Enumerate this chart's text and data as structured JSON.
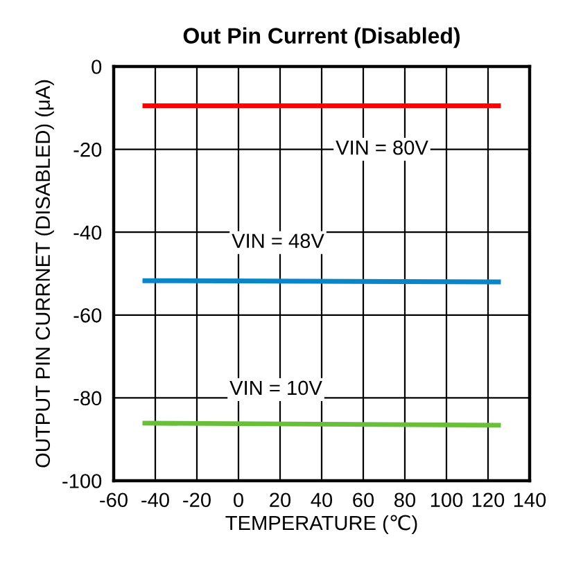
{
  "chart_data": {
    "type": "line",
    "title": "Out Pin Current (Disabled)",
    "xlabel": "TEMPERATURE (℃)",
    "ylabel": "OUTPUT PIN CURRNET (DISABLED) (μA)",
    "series": [
      {
        "name": "VIN = 80V",
        "color": "#ff0000",
        "values": [
          -9.5,
          -9.5
        ]
      },
      {
        "name": "VIN = 48V",
        "color": "#0a85c8",
        "values": [
          -51.7,
          -52
        ]
      },
      {
        "name": "VIN = 10V",
        "color": "#6abf3a",
        "values": [
          -86.1,
          -86.6
        ]
      }
    ],
    "x": [
      -45,
      125
    ],
    "xlim": [
      -60,
      140
    ],
    "xticks": [
      -60,
      -40,
      -20,
      0,
      20,
      40,
      60,
      80,
      100,
      120,
      140
    ],
    "ylim": [
      -100,
      0
    ],
    "yticks": [
      -100,
      -80,
      -60,
      -40,
      -20,
      0
    ],
    "grid": true,
    "marker": "none",
    "line_style": "solid"
  }
}
